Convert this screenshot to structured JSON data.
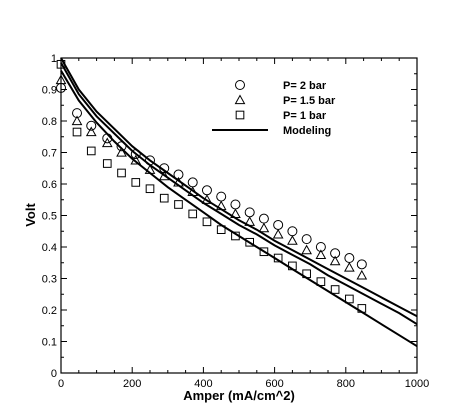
{
  "chart_data": {
    "type": "scatter",
    "title": "",
    "xlabel": "Amper (mA/cm^2)",
    "ylabel": "Volt",
    "xlim": [
      0,
      1000
    ],
    "ylim": [
      0,
      1
    ],
    "xticks": [
      0,
      200,
      400,
      600,
      800,
      1000
    ],
    "yticks": [
      0,
      0.1,
      0.2,
      0.3,
      0.4,
      0.5,
      0.6,
      0.7,
      0.8,
      0.9,
      1
    ],
    "grid": false,
    "legend_position": "top-right",
    "series": [
      {
        "name": "P= 2 bar",
        "marker": "circle",
        "x": [
          0,
          45,
          85,
          130,
          170,
          210,
          250,
          290,
          330,
          370,
          410,
          450,
          490,
          530,
          570,
          610,
          650,
          690,
          730,
          770,
          810,
          845
        ],
        "y": [
          0.905,
          0.825,
          0.785,
          0.745,
          0.72,
          0.695,
          0.675,
          0.65,
          0.63,
          0.605,
          0.58,
          0.56,
          0.535,
          0.51,
          0.49,
          0.47,
          0.45,
          0.425,
          0.4,
          0.38,
          0.365,
          0.345
        ]
      },
      {
        "name": "P= 1.5 bar",
        "marker": "triangle",
        "x": [
          0,
          45,
          85,
          130,
          170,
          210,
          250,
          290,
          330,
          370,
          410,
          450,
          490,
          530,
          570,
          610,
          650,
          690,
          730,
          770,
          810,
          845
        ],
        "y": [
          0.93,
          0.8,
          0.765,
          0.73,
          0.7,
          0.675,
          0.645,
          0.625,
          0.605,
          0.575,
          0.55,
          0.53,
          0.505,
          0.48,
          0.46,
          0.44,
          0.42,
          0.39,
          0.375,
          0.355,
          0.335,
          0.31
        ]
      },
      {
        "name": "P= 1 bar",
        "marker": "square",
        "x": [
          0,
          45,
          85,
          130,
          170,
          210,
          250,
          290,
          330,
          370,
          410,
          450,
          490,
          530,
          570,
          610,
          650,
          690,
          730,
          770,
          810,
          845
        ],
        "y": [
          0.98,
          0.765,
          0.705,
          0.665,
          0.635,
          0.605,
          0.585,
          0.555,
          0.535,
          0.505,
          0.48,
          0.455,
          0.435,
          0.415,
          0.385,
          0.365,
          0.34,
          0.315,
          0.29,
          0.265,
          0.235,
          0.205
        ]
      },
      {
        "name": "Modeling",
        "marker": "line",
        "curves": [
          {
            "x": [
              0,
              50,
              100,
              150,
              200,
              250,
              300,
              350,
              400,
              450,
              500,
              550,
              600,
              650,
              700,
              750,
              800,
              850,
              900,
              950,
              1000
            ],
            "y": [
              1.0,
              0.9,
              0.83,
              0.775,
              0.72,
              0.675,
              0.635,
              0.595,
              0.555,
              0.52,
              0.485,
              0.455,
              0.42,
              0.39,
              0.36,
              0.33,
              0.3,
              0.27,
              0.24,
              0.21,
              0.18
            ]
          },
          {
            "x": [
              0,
              50,
              100,
              150,
              200,
              250,
              300,
              350,
              400,
              450,
              500,
              550,
              600,
              650,
              700,
              750,
              800,
              850,
              900,
              950,
              1000
            ],
            "y": [
              0.985,
              0.885,
              0.815,
              0.76,
              0.705,
              0.66,
              0.62,
              0.58,
              0.54,
              0.505,
              0.47,
              0.44,
              0.405,
              0.375,
              0.345,
              0.31,
              0.28,
              0.25,
              0.22,
              0.19,
              0.155
            ]
          },
          {
            "x": [
              0,
              50,
              100,
              150,
              200,
              250,
              300,
              350,
              400,
              450,
              500,
              550,
              600,
              650,
              700,
              750,
              800,
              850,
              900,
              950,
              1000
            ],
            "y": [
              0.96,
              0.865,
              0.795,
              0.735,
              0.68,
              0.635,
              0.59,
              0.55,
              0.51,
              0.47,
              0.435,
              0.4,
              0.365,
              0.33,
              0.295,
              0.26,
              0.225,
              0.19,
              0.155,
              0.12,
              0.085
            ]
          }
        ]
      }
    ]
  },
  "colors": {
    "axis": "#000000",
    "marker": "#000000",
    "background": "#ffffff"
  }
}
